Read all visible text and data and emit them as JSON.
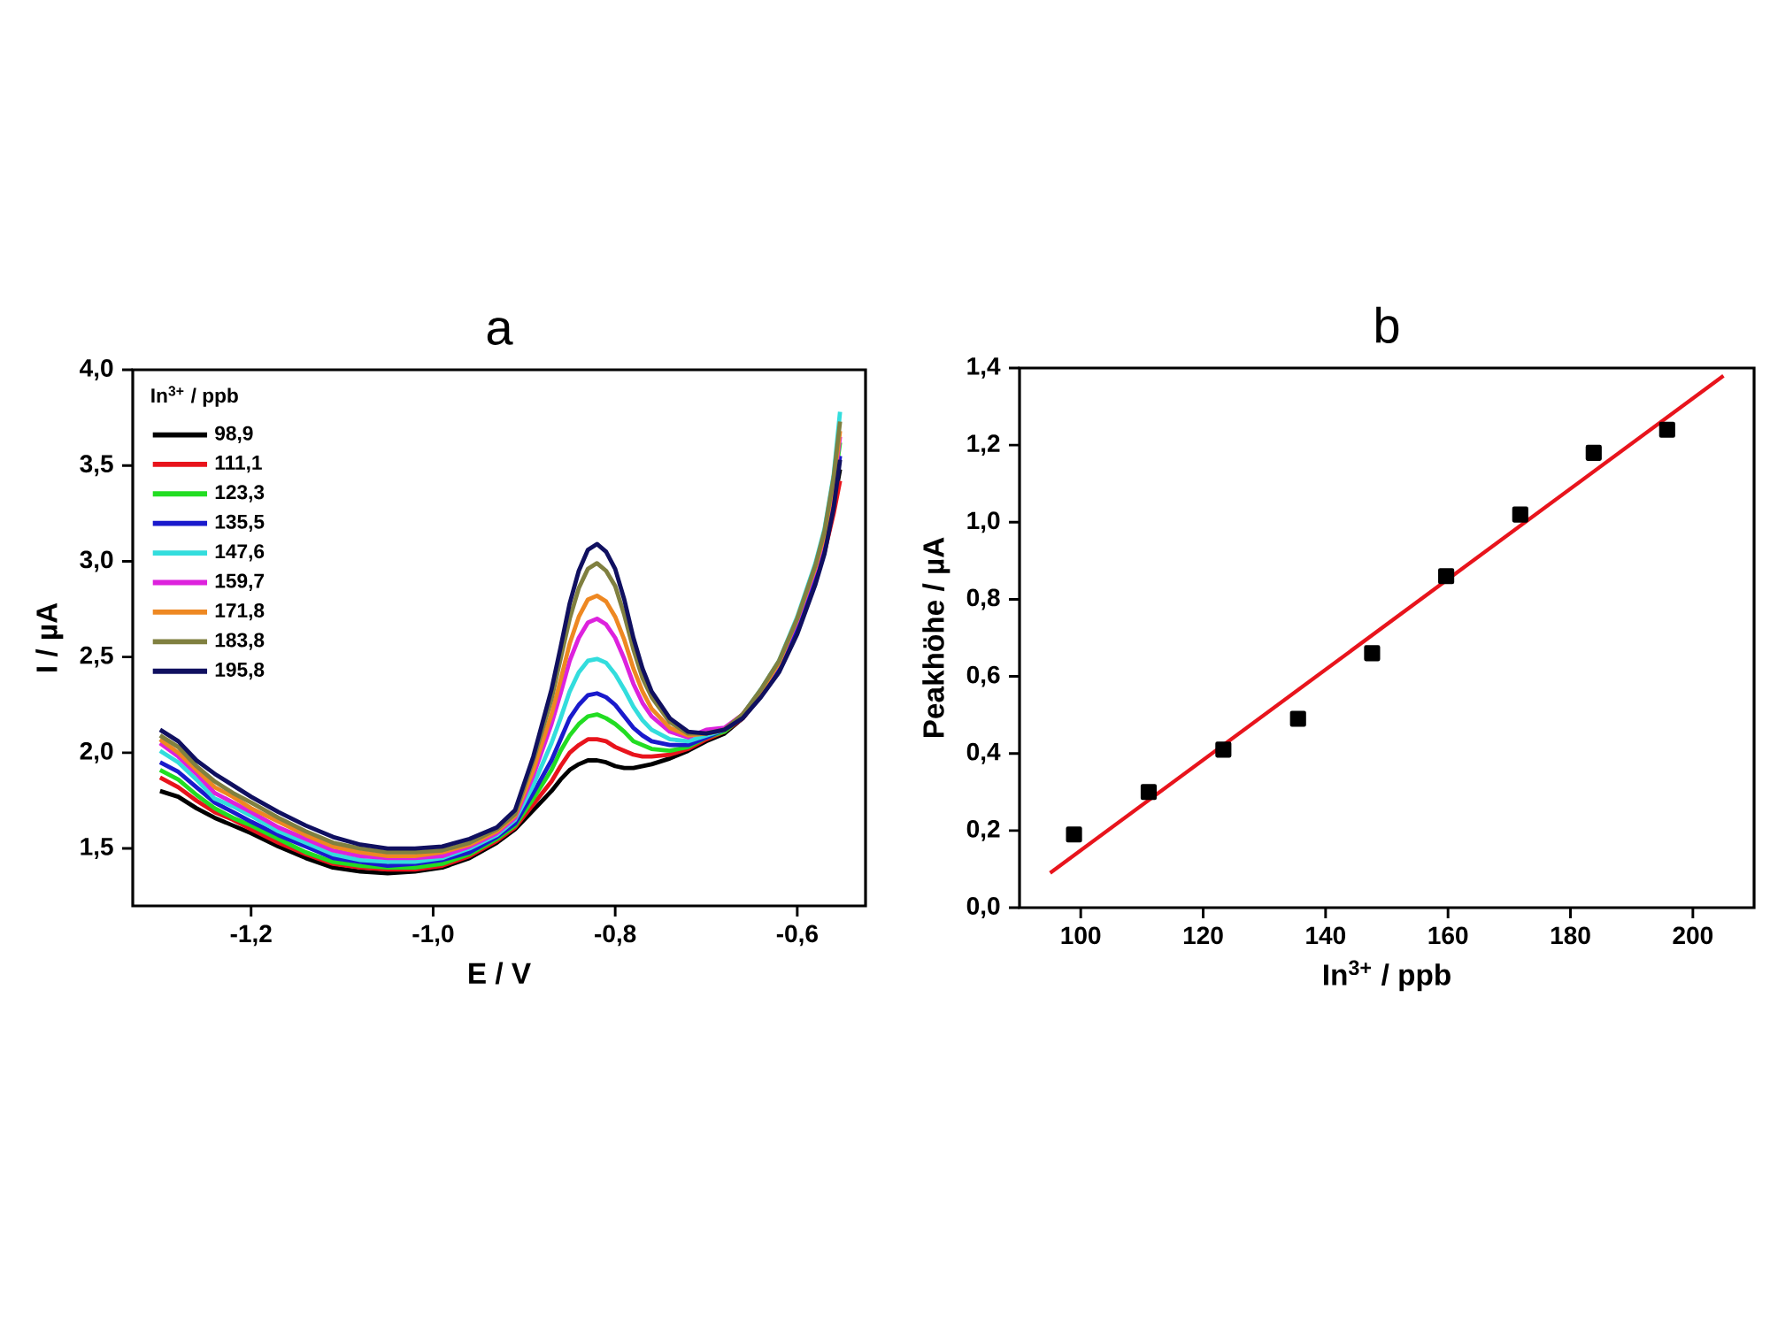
{
  "chart_data": [
    {
      "type": "line",
      "title": "a",
      "xlabel": "E / V",
      "ylabel": "I / µA",
      "legend_title": "In$^{3+}$ / ppb",
      "legend": "top left",
      "x": [
        -1.3,
        -1.28,
        -1.26,
        -1.24,
        -1.22,
        -1.2,
        -1.17,
        -1.14,
        -1.11,
        -1.08,
        -1.05,
        -1.02,
        -0.99,
        -0.96,
        -0.93,
        -0.91,
        -0.89,
        -0.87,
        -0.86,
        -0.85,
        -0.84,
        -0.83,
        -0.82,
        -0.81,
        -0.8,
        -0.79,
        -0.78,
        -0.77,
        -0.76,
        -0.74,
        -0.72,
        -0.7,
        -0.68,
        -0.66,
        -0.64,
        -0.62,
        -0.6,
        -0.58,
        -0.57,
        -0.56,
        -0.553
      ],
      "series": [
        {
          "name": "98,9",
          "color": "#000000",
          "values": [
            1.8,
            1.77,
            1.71,
            1.66,
            1.62,
            1.58,
            1.51,
            1.45,
            1.4,
            1.38,
            1.37,
            1.38,
            1.4,
            1.45,
            1.53,
            1.6,
            1.7,
            1.8,
            1.86,
            1.91,
            1.94,
            1.96,
            1.96,
            1.95,
            1.93,
            1.92,
            1.92,
            1.93,
            1.94,
            1.97,
            2.01,
            2.06,
            2.1,
            2.18,
            2.3,
            2.44,
            2.66,
            2.92,
            3.08,
            3.3,
            3.48
          ]
        },
        {
          "name": "111,1",
          "color": "#e8141c",
          "values": [
            1.87,
            1.82,
            1.75,
            1.69,
            1.65,
            1.6,
            1.53,
            1.47,
            1.42,
            1.4,
            1.39,
            1.39,
            1.41,
            1.46,
            1.54,
            1.61,
            1.73,
            1.85,
            1.93,
            2.0,
            2.04,
            2.07,
            2.07,
            2.06,
            2.03,
            2.01,
            1.99,
            1.98,
            1.98,
            1.99,
            2.02,
            2.07,
            2.11,
            2.18,
            2.3,
            2.44,
            2.65,
            2.9,
            3.05,
            3.25,
            3.42
          ]
        },
        {
          "name": "123,3",
          "color": "#22dd22",
          "values": [
            1.91,
            1.86,
            1.78,
            1.71,
            1.66,
            1.62,
            1.55,
            1.48,
            1.43,
            1.41,
            1.4,
            1.4,
            1.42,
            1.47,
            1.55,
            1.62,
            1.76,
            1.91,
            2.01,
            2.09,
            2.15,
            2.19,
            2.2,
            2.18,
            2.15,
            2.11,
            2.06,
            2.04,
            2.02,
            2.01,
            2.03,
            2.08,
            2.11,
            2.19,
            2.31,
            2.46,
            2.68,
            2.95,
            3.12,
            3.38,
            3.62
          ]
        },
        {
          "name": "135,5",
          "color": "#1a1acc",
          "values": [
            1.95,
            1.9,
            1.82,
            1.74,
            1.69,
            1.64,
            1.57,
            1.51,
            1.45,
            1.43,
            1.41,
            1.42,
            1.44,
            1.48,
            1.56,
            1.63,
            1.79,
            1.96,
            2.07,
            2.18,
            2.25,
            2.3,
            2.31,
            2.29,
            2.25,
            2.19,
            2.13,
            2.09,
            2.06,
            2.04,
            2.04,
            2.08,
            2.12,
            2.19,
            2.31,
            2.45,
            2.67,
            2.93,
            3.09,
            3.33,
            3.55
          ]
        },
        {
          "name": "147,6",
          "color": "#33dddd",
          "values": [
            2.01,
            1.95,
            1.86,
            1.76,
            1.72,
            1.67,
            1.59,
            1.53,
            1.47,
            1.44,
            1.43,
            1.43,
            1.45,
            1.5,
            1.57,
            1.65,
            1.83,
            2.05,
            2.18,
            2.32,
            2.42,
            2.48,
            2.49,
            2.47,
            2.41,
            2.33,
            2.24,
            2.17,
            2.12,
            2.07,
            2.06,
            2.09,
            2.12,
            2.2,
            2.33,
            2.48,
            2.71,
            2.99,
            3.17,
            3.45,
            3.78
          ]
        },
        {
          "name": "159,7",
          "color": "#dd22dd",
          "values": [
            2.05,
            1.98,
            1.89,
            1.79,
            1.74,
            1.69,
            1.61,
            1.55,
            1.49,
            1.46,
            1.45,
            1.45,
            1.46,
            1.51,
            1.58,
            1.66,
            1.88,
            2.15,
            2.31,
            2.48,
            2.6,
            2.68,
            2.7,
            2.67,
            2.6,
            2.49,
            2.36,
            2.26,
            2.19,
            2.11,
            2.08,
            2.12,
            2.13,
            2.2,
            2.32,
            2.47,
            2.69,
            2.96,
            3.13,
            3.4,
            3.65
          ]
        },
        {
          "name": "171,8",
          "color": "#ee8822",
          "values": [
            2.07,
            2.0,
            1.91,
            1.82,
            1.77,
            1.71,
            1.64,
            1.57,
            1.51,
            1.48,
            1.46,
            1.46,
            1.48,
            1.52,
            1.59,
            1.67,
            1.91,
            2.2,
            2.38,
            2.57,
            2.71,
            2.8,
            2.82,
            2.79,
            2.71,
            2.59,
            2.44,
            2.32,
            2.23,
            2.13,
            2.09,
            2.1,
            2.12,
            2.2,
            2.32,
            2.47,
            2.7,
            2.97,
            3.14,
            3.42,
            3.68
          ]
        },
        {
          "name": "183,8",
          "color": "#808040",
          "values": [
            2.09,
            2.03,
            1.93,
            1.85,
            1.79,
            1.74,
            1.66,
            1.59,
            1.53,
            1.5,
            1.48,
            1.48,
            1.49,
            1.53,
            1.6,
            1.68,
            1.96,
            2.28,
            2.49,
            2.7,
            2.86,
            2.96,
            2.99,
            2.95,
            2.87,
            2.72,
            2.54,
            2.39,
            2.29,
            2.16,
            2.1,
            2.1,
            2.12,
            2.2,
            2.33,
            2.48,
            2.7,
            2.98,
            3.16,
            3.44,
            3.73
          ]
        },
        {
          "name": "195,8",
          "color": "#101060",
          "values": [
            2.12,
            2.06,
            1.96,
            1.89,
            1.83,
            1.77,
            1.69,
            1.62,
            1.56,
            1.52,
            1.5,
            1.5,
            1.51,
            1.55,
            1.61,
            1.7,
            1.98,
            2.33,
            2.55,
            2.78,
            2.95,
            3.06,
            3.09,
            3.05,
            2.96,
            2.8,
            2.6,
            2.44,
            2.32,
            2.18,
            2.11,
            2.1,
            2.12,
            2.18,
            2.29,
            2.42,
            2.62,
            2.88,
            3.04,
            3.28,
            3.53
          ]
        }
      ],
      "xlim": [
        -1.33,
        -0.525
      ],
      "ylim": [
        1.2,
        4.0
      ],
      "xticks": [
        {
          "value": -1.2,
          "label": "-1,2"
        },
        {
          "value": -1.0,
          "label": "-1,0"
        },
        {
          "value": -0.8,
          "label": "-0,8"
        },
        {
          "value": -0.6,
          "label": "-0,6"
        }
      ],
      "yticks": [
        {
          "value": 1.5,
          "label": "1,5"
        },
        {
          "value": 2.0,
          "label": "2,0"
        },
        {
          "value": 2.5,
          "label": "2,5"
        },
        {
          "value": 3.0,
          "label": "3,0"
        },
        {
          "value": 3.5,
          "label": "3,5"
        },
        {
          "value": 4.0,
          "label": "4,0"
        }
      ]
    },
    {
      "type": "scatter",
      "title": "b",
      "xlabel": "In$^{3+}$ / ppb",
      "ylabel": "Peakhöhe / µA",
      "series": [
        {
          "type": "scatter",
          "color": "#000000",
          "marker": "square",
          "x": [
            98.9,
            111.1,
            123.3,
            135.5,
            147.6,
            159.7,
            171.8,
            183.8,
            195.8
          ],
          "values": [
            0.19,
            0.3,
            0.41,
            0.49,
            0.66,
            0.86,
            1.02,
            1.18,
            1.24
          ]
        },
        {
          "type": "line",
          "color": "#e8141c",
          "x": [
            95,
            205
          ],
          "values": [
            0.09,
            1.38
          ]
        }
      ],
      "xlim": [
        90,
        210
      ],
      "ylim": [
        0,
        1.4
      ],
      "xticks": [
        100,
        120,
        140,
        160,
        180,
        200
      ],
      "yticks": [
        {
          "value": 0.0,
          "label": "0,0"
        },
        {
          "value": 0.2,
          "label": "0,2"
        },
        {
          "value": 0.4,
          "label": "0,4"
        },
        {
          "value": 0.6,
          "label": "0,6"
        },
        {
          "value": 0.8,
          "label": "0,8"
        },
        {
          "value": 1.0,
          "label": "1,0"
        },
        {
          "value": 1.2,
          "label": "1,2"
        },
        {
          "value": 1.4,
          "label": "1,4"
        }
      ]
    }
  ]
}
